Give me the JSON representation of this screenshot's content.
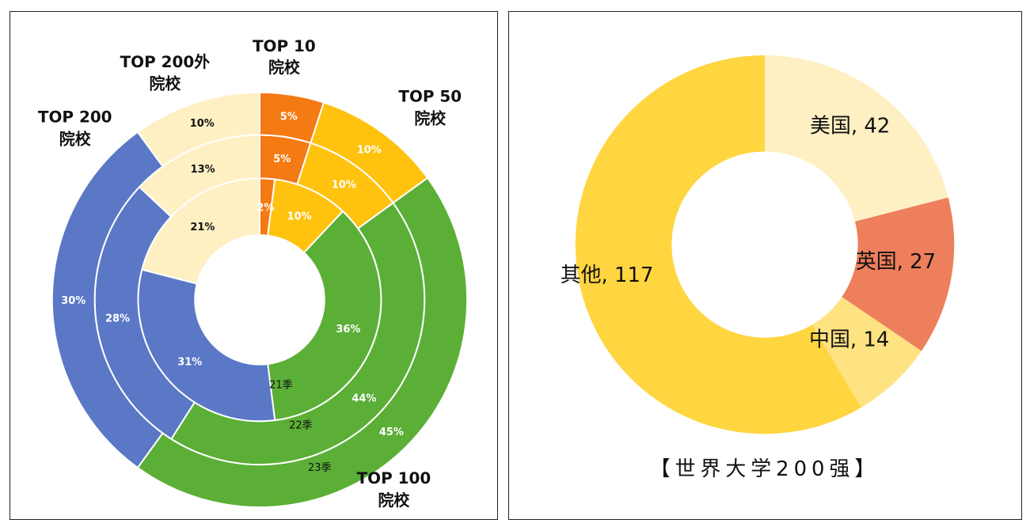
{
  "chart_data": [
    {
      "type": "pie",
      "seasons": [
        "21季",
        "22季",
        "23季"
      ],
      "categories": [
        {
          "key": "top10",
          "label": [
            "TOP 10",
            "院校"
          ],
          "color": "#F47A14"
        },
        {
          "key": "top50",
          "label": [
            "TOP 50",
            "院校"
          ],
          "color": "#FFC20E"
        },
        {
          "key": "top100",
          "label": [
            "TOP 100",
            "院校"
          ],
          "color": "#5BAF36"
        },
        {
          "key": "top200",
          "label": [
            "TOP 200",
            "院校"
          ],
          "color": "#5A78C6"
        },
        {
          "key": "outside",
          "label": [
            "TOP 200外",
            "院校"
          ],
          "color": "#FFF0C4"
        }
      ],
      "series": [
        {
          "values": [
            2,
            10,
            36,
            31,
            21
          ],
          "labels": [
            "2%",
            "10%",
            "36%",
            "31%",
            "21%"
          ]
        },
        {
          "values": [
            5,
            10,
            44,
            28,
            13
          ],
          "labels": [
            "5%",
            "10%",
            "44%",
            "28%",
            "13%"
          ]
        },
        {
          "values": [
            5,
            10,
            45,
            30,
            10
          ],
          "labels": [
            "5%",
            "10%",
            "45%",
            "30%",
            "10%"
          ]
        }
      ]
    },
    {
      "type": "pie",
      "title": "【世界大学200强】",
      "slices": [
        {
          "label": "美国, 42",
          "value": 42,
          "color": "#FFF0C3"
        },
        {
          "label": "英国, 27",
          "value": 27,
          "color": "#EE7F5C"
        },
        {
          "label": "中国, 14",
          "value": 14,
          "color": "#FFE382"
        },
        {
          "label": "其他, 117",
          "value": 117,
          "color": "#FFD540"
        }
      ]
    }
  ]
}
